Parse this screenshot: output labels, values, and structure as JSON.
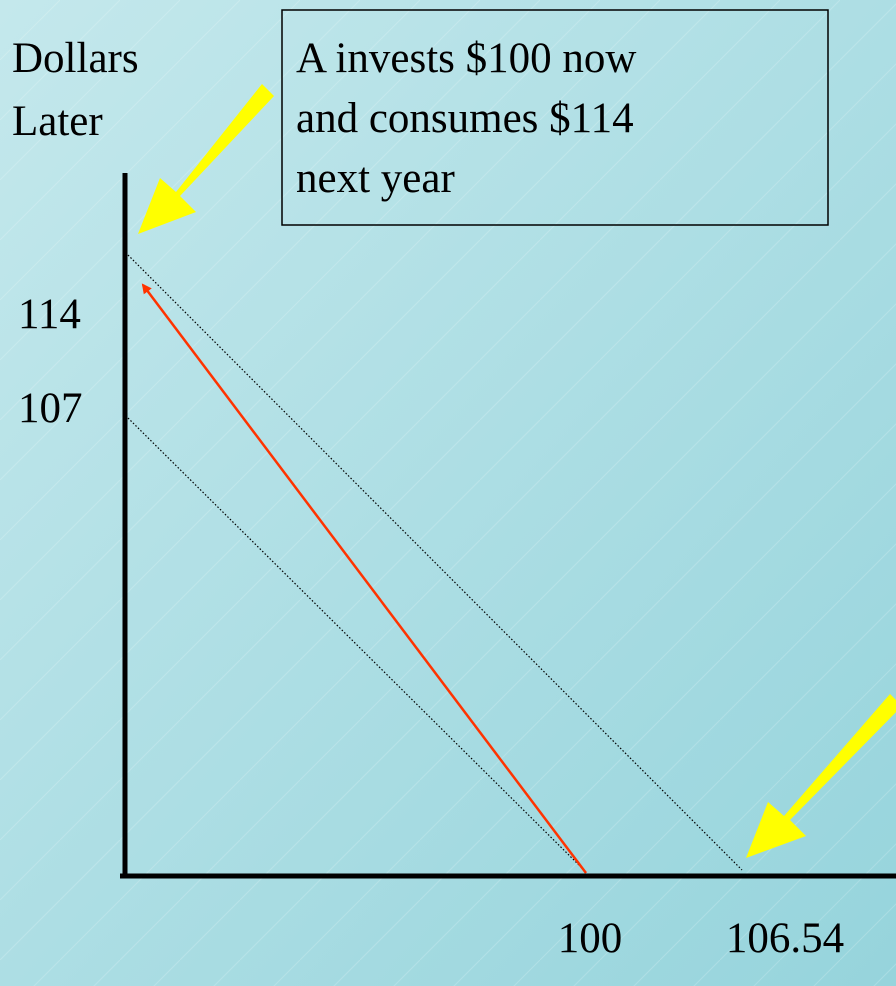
{
  "y_axis_label": [
    "Dollars",
    "Later"
  ],
  "callout": [
    "A invests $100 now",
    "and consumes $114",
    "next year"
  ],
  "y_ticks": [
    "114",
    "107"
  ],
  "x_ticks": [
    "100",
    "106.54"
  ]
}
